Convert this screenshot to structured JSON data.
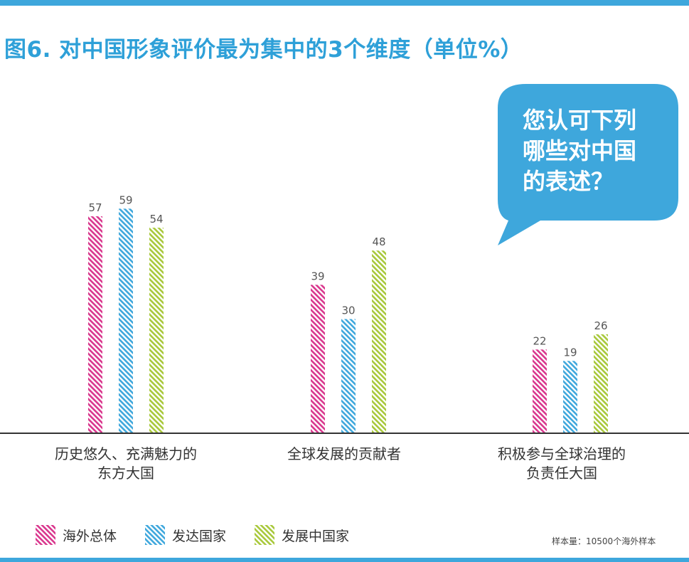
{
  "title": "图6. 对中国形象评价最为集中的3个维度（单位%）",
  "bubble": {
    "lines": [
      "您认可下列",
      "哪些对中国",
      "的表述？"
    ]
  },
  "colors": {
    "accent": "#3ea7dc",
    "title": "#2ea0d8",
    "axis": "#333333",
    "value_label": "#555555"
  },
  "chart_data": {
    "type": "bar",
    "title": "图6. 对中国形象评价最为集中的3个维度（单位%）",
    "categories": [
      [
        "历史悠久、充满魅力的",
        "东方大国"
      ],
      [
        "全球发展的贡献者"
      ],
      [
        "积极参与全球治理的",
        "负责任大国"
      ]
    ],
    "series": [
      {
        "name": "海外总体",
        "color": "#d9368d",
        "values": [
          57,
          39,
          22
        ]
      },
      {
        "name": "发达国家",
        "color": "#3ea7dc",
        "values": [
          59,
          30,
          19
        ]
      },
      {
        "name": "发展中国家",
        "color": "#a8c83a",
        "values": [
          54,
          48,
          26
        ]
      }
    ],
    "ylim": [
      0,
      100
    ],
    "grid": false,
    "pattern": "diagonal-stripes",
    "legend_position": "bottom-left"
  },
  "legend": [
    "海外总体",
    "发达国家",
    "发展中国家"
  ],
  "sample_note": {
    "label": "样本量：",
    "value": "10500个海外样本"
  }
}
